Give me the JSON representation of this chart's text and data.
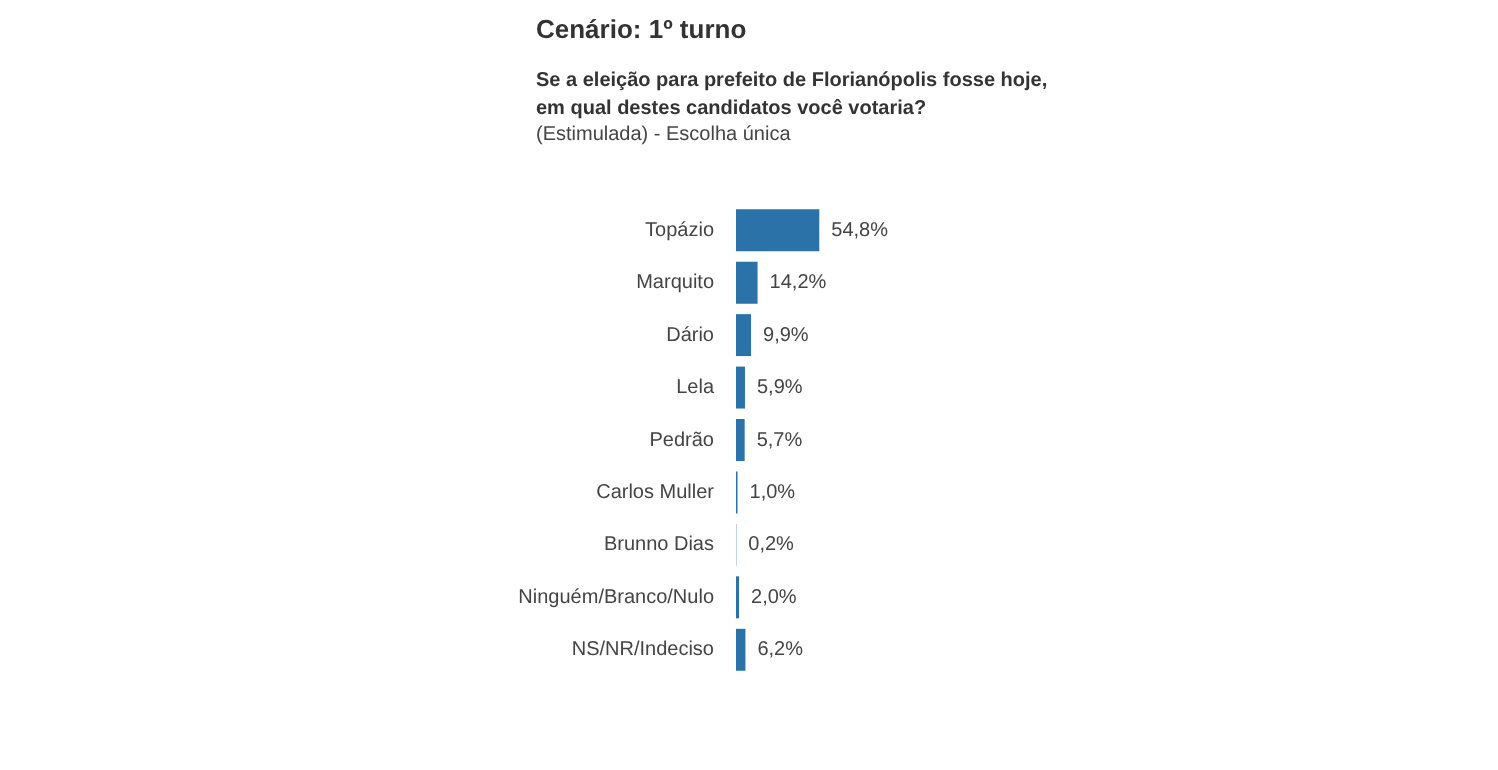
{
  "chart_data": {
    "type": "bar",
    "orientation": "horizontal",
    "title": "Cenário: 1º turno",
    "subtitle": "Se a eleição para prefeito de Florianópolis fosse hoje, em qual destes candidatos você votaria?",
    "annotations": [
      "(Estimulada) - Escolha única"
    ],
    "categories": [
      "Topázio",
      "Marquito",
      "Dário",
      "Lela",
      "Pedrão",
      "Carlos Muller",
      "Brunno Dias",
      "Ninguém/Branco/Nulo",
      "NS/NR/Indeciso"
    ],
    "values": [
      54.8,
      14.2,
      9.9,
      5.9,
      5.7,
      1.0,
      0.2,
      2.0,
      6.2
    ],
    "value_labels": [
      "54,8%",
      "14,2%",
      "9,9%",
      "5,9%",
      "5,7%",
      "1,0%",
      "0,2%",
      "2,0%",
      "6,2%"
    ],
    "color": "#2a72a8",
    "legend": false,
    "tick_labels": "y"
  }
}
